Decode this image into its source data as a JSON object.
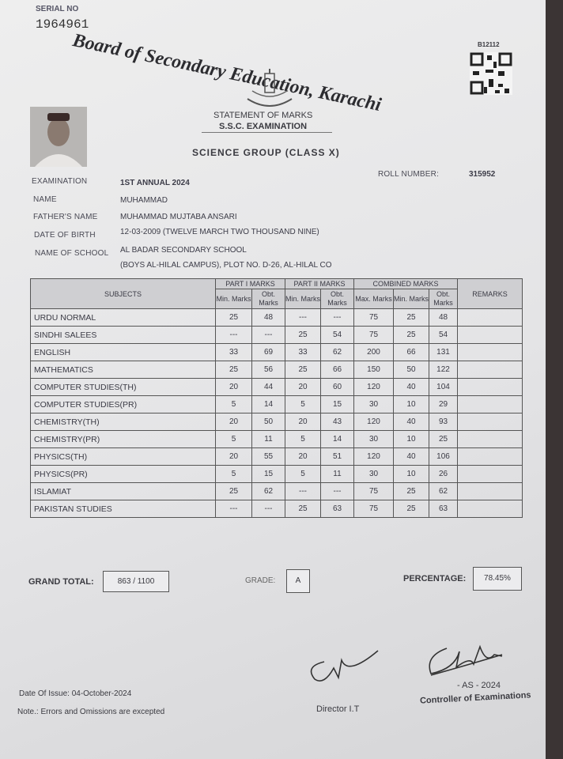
{
  "serial": {
    "label": "SERIAL NO",
    "number": "1964961"
  },
  "board_title": "Board of Secondary Education, Karachi",
  "code": "B12112",
  "statement": "STATEMENT OF MARKS",
  "examination_title": "S.S.C. EXAMINATION",
  "group": "SCIENCE GROUP (CLASS X)",
  "fields": {
    "examination": {
      "label": "EXAMINATION",
      "value": "1ST ANNUAL 2024"
    },
    "roll_number": {
      "label": "ROLL NUMBER:",
      "value": "315952"
    },
    "name": {
      "label": "NAME",
      "value": "MUHAMMAD"
    },
    "father_name": {
      "label": "FATHER'S NAME",
      "value": "MUHAMMAD MUJTABA ANSARI"
    },
    "date_of_birth": {
      "label": "DATE OF BIRTH",
      "value": "12-03-2009 (TWELVE MARCH TWO THOUSAND NINE)"
    },
    "school": {
      "label": "NAME OF SCHOOL",
      "value": [
        "AL BADAR SECONDARY SCHOOL",
        "(BOYS AL-HILAL CAMPUS), PLOT NO. D-26, AL-HILAL CO"
      ]
    }
  },
  "table": {
    "header": {
      "subjects": "SUBJECTS",
      "part1": "PART I MARKS",
      "part2": "PART II MARKS",
      "combined": "COMBINED MARKS",
      "remarks": "REMARKS",
      "sub": [
        "Min. Marks",
        "Obt. Marks",
        "Min. Marks",
        "Obt. Marks",
        "Max. Marks",
        "Min. Marks",
        "Obt. Marks"
      ]
    },
    "rows": [
      [
        "URDU NORMAL",
        "25",
        "48",
        "---",
        "---",
        "75",
        "25",
        "48"
      ],
      [
        "SINDHI SALEES",
        "---",
        "---",
        "25",
        "54",
        "75",
        "25",
        "54"
      ],
      [
        "ENGLISH",
        "33",
        "69",
        "33",
        "62",
        "200",
        "66",
        "131"
      ],
      [
        "MATHEMATICS",
        "25",
        "56",
        "25",
        "66",
        "150",
        "50",
        "122"
      ],
      [
        "COMPUTER STUDIES(TH)",
        "20",
        "44",
        "20",
        "60",
        "120",
        "40",
        "104"
      ],
      [
        "COMPUTER STUDIES(PR)",
        "5",
        "14",
        "5",
        "15",
        "30",
        "10",
        "29"
      ],
      [
        "CHEMISTRY(TH)",
        "20",
        "50",
        "20",
        "43",
        "120",
        "40",
        "93"
      ],
      [
        "CHEMISTRY(PR)",
        "5",
        "11",
        "5",
        "14",
        "30",
        "10",
        "25"
      ],
      [
        "PHYSICS(TH)",
        "20",
        "55",
        "20",
        "51",
        "120",
        "40",
        "106"
      ],
      [
        "PHYSICS(PR)",
        "5",
        "15",
        "5",
        "11",
        "30",
        "10",
        "26"
      ],
      [
        "ISLAMIAT",
        "25",
        "62",
        "---",
        "---",
        "75",
        "25",
        "62"
      ],
      [
        "PAKISTAN STUDIES",
        "---",
        "---",
        "25",
        "63",
        "75",
        "25",
        "63"
      ]
    ]
  },
  "summary": {
    "grand_total": {
      "label": "GRAND TOTAL:",
      "value": "863 / 1100"
    },
    "grade": {
      "label": "GRADE:",
      "value": "A"
    },
    "percentage": {
      "label": "PERCENTAGE:",
      "value": "78.45%"
    }
  },
  "footer": {
    "date_of_issue": "Date Of Issue: 04-October-2024",
    "note": "Note.: Errors and Omissions are excepted",
    "director": "Director I.T",
    "session": "- AS - 2024",
    "controller": "Controller of Examinations"
  }
}
